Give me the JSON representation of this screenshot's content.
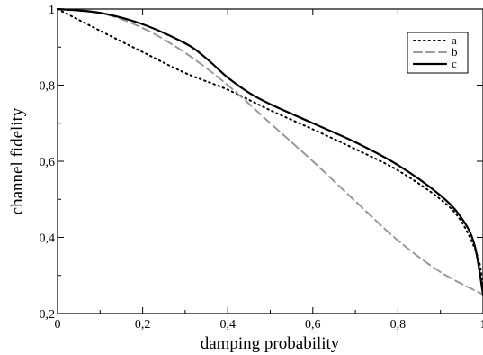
{
  "chart_data": {
    "type": "line",
    "xlabel": "damping probability",
    "ylabel": "channel fidelity",
    "xlim": [
      0,
      1
    ],
    "ylim": [
      0.2,
      1
    ],
    "xticks": [
      0,
      0.2,
      0.4,
      0.6,
      0.8,
      1
    ],
    "xtick_labels": [
      "0",
      "0,2",
      "0,4",
      "0,6",
      "0,8",
      "1"
    ],
    "yticks": [
      0.2,
      0.4,
      0.6,
      0.8,
      1
    ],
    "ytick_labels": [
      "0,2",
      "0,4",
      "0,6",
      "0,8",
      "1"
    ],
    "grid": false,
    "legend_position": "top-right",
    "series": [
      {
        "name": "a",
        "style": "dotted",
        "color": "#000000",
        "x": [
          0,
          0.1,
          0.2,
          0.3,
          0.4,
          0.5,
          0.6,
          0.7,
          0.8,
          0.9,
          0.95,
          0.99,
          1.0
        ],
        "y": [
          1.0,
          0.943,
          0.887,
          0.832,
          0.788,
          0.734,
          0.684,
          0.632,
          0.576,
          0.5,
          0.44,
          0.34,
          0.25
        ]
      },
      {
        "name": "b",
        "style": "dashed",
        "color": "#999999",
        "x": [
          0,
          0.1,
          0.2,
          0.3,
          0.4,
          0.5,
          0.6,
          0.7,
          0.8,
          0.9,
          1.0
        ],
        "y": [
          1.0,
          0.99,
          0.95,
          0.885,
          0.8,
          0.7,
          0.6,
          0.495,
          0.392,
          0.309,
          0.25
        ]
      },
      {
        "name": "c",
        "style": "solid",
        "color": "#000000",
        "x": [
          0,
          0.1,
          0.2,
          0.3,
          0.35,
          0.4,
          0.45,
          0.5,
          0.6,
          0.7,
          0.8,
          0.9,
          0.95,
          0.98,
          1.0
        ],
        "y": [
          1.0,
          0.99,
          0.96,
          0.91,
          0.87,
          0.82,
          0.78,
          0.75,
          0.7,
          0.65,
          0.59,
          0.51,
          0.45,
          0.38,
          0.25
        ]
      }
    ]
  }
}
